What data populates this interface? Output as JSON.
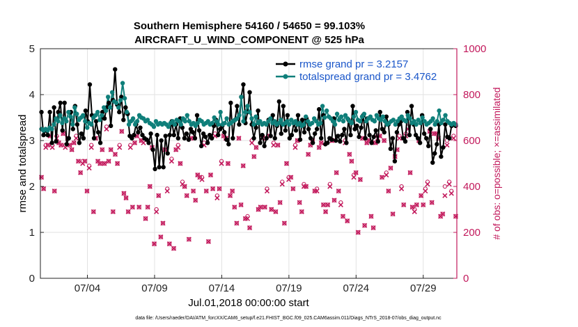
{
  "chart_data": {
    "type": "line",
    "title_line1": "Southern Hemisphere 54160 / 54650 = 99.103%",
    "title_line2": "AIRCRAFT_U_WIND_COMPONENT @ 525 hPa",
    "xlabel": "Jul.01,2018 00:00:00 start",
    "ylabel": "rmse and totalspread",
    "ylabel_right": "# of obs: o=possible; ×=assimilated",
    "footnote": "data file: /Users/raeder/DAI/ATM_forcXX/CAM6_setup/f.e21.FHIST_BGC.f09_025.CAM6assim.011/Diags_NTrS_2018-07/obs_diag_output.nc",
    "xlim": [
      0.5,
      31.5
    ],
    "ylim": [
      0,
      5
    ],
    "ylim_right": [
      0,
      1000
    ],
    "x_ticks": [
      {
        "v": 4,
        "label": "07/04"
      },
      {
        "v": 9,
        "label": "07/09"
      },
      {
        "v": 14,
        "label": "07/14"
      },
      {
        "v": 19,
        "label": "07/19"
      },
      {
        "v": 24,
        "label": "07/24"
      },
      {
        "v": 29,
        "label": "07/29"
      }
    ],
    "y_ticks": [
      {
        "v": 0,
        "label": "0"
      },
      {
        "v": 1,
        "label": "1"
      },
      {
        "v": 2,
        "label": "2"
      },
      {
        "v": 3,
        "label": "3"
      },
      {
        "v": 4,
        "label": "4"
      },
      {
        "v": 5,
        "label": "5"
      }
    ],
    "y_ticks_right": [
      {
        "v": 0,
        "label": "0"
      },
      {
        "v": 200,
        "label": "200"
      },
      {
        "v": 400,
        "label": "400"
      },
      {
        "v": 600,
        "label": "600"
      },
      {
        "v": 800,
        "label": "800"
      },
      {
        "v": 1000,
        "label": "1000"
      }
    ],
    "grid": true,
    "legend_position": "top-right",
    "series": [
      {
        "name": "rmse grand pr = 3.2157",
        "color": "#000000",
        "axis": "left",
        "values": [
          3.62,
          3.12,
          3.22,
          3.12,
          3.62,
          2.95,
          3.72,
          2.98,
          3.62,
          3.82,
          3.22,
          3.82,
          2.92,
          3.05,
          3.62,
          3.25,
          3.75,
          3.35,
          2.95,
          3.15,
          3.05,
          3.65,
          3.42,
          4.22,
          3.55,
          3.05,
          3.42,
          3.18,
          2.95,
          3.62,
          3.48,
          3.72,
          3.82,
          3.32,
          3.88,
          4.55,
          3.78,
          3.62,
          3.95,
          3.45,
          3.72,
          3.58,
          3.1,
          3.05,
          3.12,
          3.35,
          3.18,
          3.28,
          3.12,
          3.05,
          3.02,
          2.95,
          3.15,
          2.8,
          2.38,
          3.12,
          2.42,
          3.0,
          2.42,
          3.1,
          2.72,
          3.12,
          3.42,
          3.12,
          3.35,
          3.05,
          3.48,
          3.28,
          3.05,
          3.15,
          3.02,
          3.25,
          3.18,
          3.05,
          3.55,
          3.22,
          2.88,
          3.15,
          3.08,
          2.95,
          3.12,
          3.05,
          3.32,
          3.45,
          3.12,
          3.25,
          3.32,
          3.18,
          3.02,
          2.92,
          3.82,
          3.05,
          3.45,
          3.75,
          3.35,
          3.95,
          4.22,
          3.38,
          3.62,
          4.05,
          3.35,
          3.05,
          3.28,
          3.65,
          2.95,
          3.12,
          2.88,
          3.05,
          3.45,
          3.1,
          3.55,
          3.05,
          3.32,
          3.85,
          3.15,
          3.75,
          3.22,
          3.55,
          3.05,
          3.12,
          3.38,
          3.22,
          3.55,
          3.02,
          3.45,
          3.18,
          3.48,
          3.25,
          3.05,
          2.95,
          3.15,
          3.25,
          3.68,
          3.05,
          3.55,
          2.92,
          2.95,
          3.05,
          3.02,
          3.48,
          3.0,
          3.1,
          2.98,
          3.12,
          3.25,
          2.95,
          3.45,
          3.12,
          3.75,
          3.25,
          3.32,
          3.08,
          3.28,
          3.55,
          3.05,
          3.48,
          3.12,
          2.95,
          3.08,
          3.22,
          2.98,
          3.62,
          3.25,
          3.18,
          3.52,
          3.35,
          2.82,
          3.05,
          2.55,
          3.18,
          3.35,
          3.42,
          3.05,
          2.98,
          3.62,
          3.12,
          3.75,
          3.35,
          3.12,
          3.05,
          2.95,
          3.55,
          3.15,
          3.05,
          2.88,
          3.25,
          2.52,
          2.72,
          2.92,
          3.35,
          2.65,
          2.85,
          3.35,
          3.08,
          3.05,
          3.32,
          3.35,
          3.32
        ]
      },
      {
        "name": "totalspread grand pr = 3.4762",
        "color": "#0f7f7a",
        "axis": "left",
        "values": [
          3.25,
          3.22,
          3.25,
          3.22,
          3.28,
          3.25,
          3.35,
          3.48,
          3.42,
          3.55,
          3.38,
          3.48,
          3.42,
          3.62,
          3.52,
          3.35,
          3.72,
          3.58,
          3.45,
          3.5,
          3.55,
          3.42,
          3.28,
          3.38,
          3.35,
          3.5,
          3.55,
          3.62,
          3.45,
          3.55,
          3.72,
          3.65,
          3.95,
          3.72,
          4.05,
          3.85,
          3.82,
          3.72,
          3.88,
          4.25,
          3.92,
          3.62,
          3.35,
          3.42,
          3.48,
          3.35,
          3.42,
          3.55,
          3.5,
          3.48,
          3.42,
          3.45,
          3.38,
          3.35,
          3.3,
          3.42,
          3.35,
          3.38,
          3.35,
          3.38,
          3.35,
          3.3,
          3.38,
          3.42,
          3.35,
          3.45,
          3.42,
          3.35,
          3.48,
          3.42,
          3.55,
          3.42,
          3.35,
          3.38,
          3.32,
          3.38,
          3.45,
          3.42,
          3.35,
          3.38,
          3.42,
          3.35,
          3.38,
          3.5,
          3.42,
          3.35,
          3.62,
          3.35,
          3.38,
          3.48,
          3.35,
          3.38,
          3.42,
          3.45,
          3.48,
          3.55,
          3.95,
          3.42,
          3.62,
          3.75,
          3.62,
          3.48,
          3.35,
          3.52,
          3.38,
          3.42,
          3.35,
          3.38,
          3.35,
          3.42,
          3.48,
          3.38,
          3.42,
          3.35,
          3.38,
          3.45,
          3.35,
          3.38,
          3.42,
          3.35,
          3.45,
          3.38,
          3.42,
          3.35,
          3.38,
          3.32,
          3.35,
          3.52,
          3.42,
          3.35,
          3.38,
          3.48,
          3.42,
          3.35,
          3.38,
          3.75,
          3.5,
          3.65,
          3.52,
          3.48,
          3.42,
          3.35,
          3.58,
          3.45,
          3.52,
          3.42,
          3.55,
          3.48,
          3.42,
          3.38,
          3.52,
          3.62,
          3.45,
          3.42,
          3.52,
          3.58,
          3.42,
          3.48,
          3.52,
          3.45,
          3.42,
          3.55,
          3.48,
          3.45,
          3.52,
          3.42,
          3.35,
          3.38,
          3.42,
          3.45,
          3.35,
          3.42,
          3.48,
          3.52,
          3.45,
          3.42,
          3.55,
          3.48,
          3.38,
          3.42,
          3.35,
          3.45,
          3.38,
          3.5,
          3.42,
          3.35,
          3.38,
          3.42,
          3.48,
          3.35,
          3.42,
          3.65,
          3.38,
          3.45,
          3.55,
          3.42,
          3.38,
          3.35,
          3.38,
          3.35
        ]
      }
    ],
    "obs_series": [
      {
        "name": "obs possible",
        "marker": "o",
        "color": "#c2185b",
        "axis": "right",
        "values": [
          440,
          390,
          580,
          580,
          620,
          580,
          380,
          620,
          590,
          580,
          630,
          580,
          610,
          580,
          560,
          590,
          620,
          510,
          460,
          510,
          510,
          380,
          490,
          580,
          290,
          610,
          510,
          500,
          560,
          500,
          660,
          510,
          560,
          290,
          540,
          500,
          580,
          640,
          370,
          350,
          290,
          580,
          310,
          590,
          620,
          310,
          600,
          600,
          260,
          310,
          400,
          570,
          150,
          300,
          360,
          180,
          240,
          560,
          390,
          150,
          520,
          130,
          560,
          580,
          500,
          420,
          400,
          360,
          170,
          610,
          380,
          340,
          450,
          440,
          440,
          590,
          380,
          160,
          450,
          390,
          630,
          360,
          390,
          510,
          620,
          610,
          500,
          360,
          380,
          310,
          240,
          610,
          320,
          490,
          260,
          270,
          220,
          600,
          530,
          570,
          300,
          310,
          620,
          310,
          390,
          620,
          300,
          590,
          290,
          580,
          330,
          420,
          240,
          500,
          440,
          440,
          390,
          580,
          600,
          330,
          290,
          410,
          400,
          540,
          580,
          600,
          380,
          390,
          570,
          590,
          320,
          290,
          320,
          410,
          600,
          340,
          460,
          380,
          330,
          270,
          600,
          250,
          540,
          510,
          450,
          460,
          200,
          430,
          610,
          230,
          590,
          600,
          270,
          220,
          590,
          620,
          620,
          440,
          600,
          460,
          380,
          480,
          280,
          530,
          560,
          620,
          400,
          320,
          630,
          660,
          460,
          310,
          300,
          320,
          600,
          360,
          320,
          390,
          420,
          640,
          330,
          630,
          630,
          610,
          270,
          280,
          400,
          600,
          420,
          380,
          620,
          270
        ]
      },
      {
        "name": "obs assimilated",
        "marker": "x",
        "color": "#c2185b",
        "axis": "right",
        "values": [
          440,
          390,
          570,
          580,
          620,
          570,
          380,
          610,
          590,
          580,
          630,
          570,
          610,
          580,
          560,
          590,
          610,
          510,
          460,
          500,
          510,
          380,
          480,
          570,
          290,
          610,
          510,
          500,
          560,
          500,
          650,
          510,
          560,
          290,
          540,
          500,
          570,
          640,
          370,
          350,
          290,
          570,
          310,
          590,
          620,
          310,
          600,
          590,
          260,
          310,
          400,
          570,
          150,
          290,
          360,
          180,
          240,
          560,
          380,
          150,
          510,
          130,
          560,
          570,
          500,
          410,
          400,
          360,
          170,
          610,
          380,
          340,
          450,
          440,
          430,
          580,
          380,
          160,
          450,
          390,
          620,
          350,
          390,
          500,
          620,
          610,
          500,
          360,
          380,
          310,
          240,
          610,
          320,
          490,
          260,
          260,
          220,
          590,
          530,
          570,
          300,
          310,
          610,
          310,
          380,
          620,
          300,
          580,
          290,
          580,
          330,
          410,
          240,
          500,
          430,
          440,
          390,
          570,
          600,
          330,
          290,
          400,
          400,
          540,
          580,
          600,
          380,
          380,
          570,
          590,
          320,
          290,
          320,
          400,
          600,
          340,
          460,
          380,
          320,
          270,
          590,
          250,
          540,
          510,
          440,
          460,
          200,
          430,
          610,
          230,
          590,
          600,
          270,
          220,
          590,
          610,
          620,
          440,
          600,
          450,
          380,
          480,
          280,
          530,
          560,
          610,
          390,
          320,
          620,
          650,
          460,
          310,
          290,
          320,
          600,
          360,
          320,
          380,
          410,
          640,
          330,
          630,
          630,
          610,
          270,
          280,
          360,
          580,
          410,
          370,
          610,
          270
        ]
      }
    ]
  }
}
